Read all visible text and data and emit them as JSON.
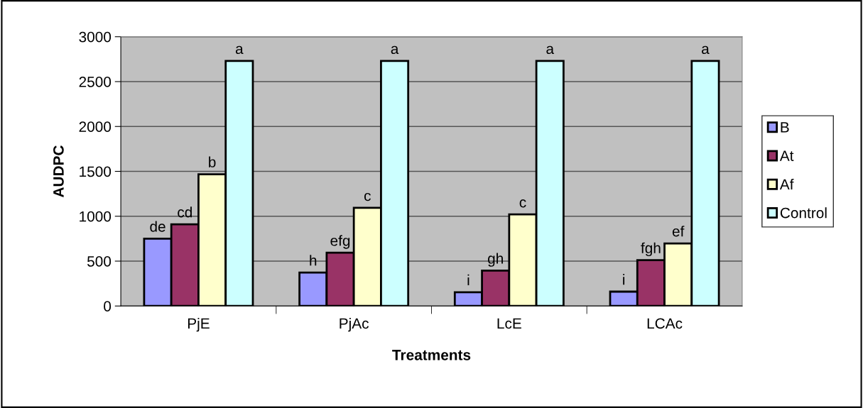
{
  "chart_data": {
    "type": "bar",
    "xlabel": "Treatments",
    "ylabel": "AUDPC",
    "categories": [
      "PjE",
      "PjAc",
      "LcE",
      "LCAc"
    ],
    "series": [
      {
        "name": "B",
        "color": "#9999ff",
        "values": [
          750,
          372,
          154,
          160
        ],
        "value_labels": [
          "de",
          "h",
          "i",
          "i"
        ]
      },
      {
        "name": "At",
        "color": "#993366",
        "values": [
          910,
          593,
          394,
          511
        ],
        "value_labels": [
          "cd",
          "efg",
          "gh",
          "fgh"
        ]
      },
      {
        "name": "Af",
        "color": "#ffffcc",
        "values": [
          1468,
          1093,
          1021,
          697
        ],
        "value_labels": [
          "b",
          "c",
          "c",
          "ef"
        ]
      },
      {
        "name": "Control",
        "color": "#ccffff",
        "values": [
          2731,
          2731,
          2731,
          2731
        ],
        "value_labels": [
          "a",
          "a",
          "a",
          "a"
        ]
      }
    ],
    "ylim": [
      0,
      3000
    ],
    "yticks": [
      0,
      500,
      1000,
      1500,
      2000,
      2500,
      3000
    ],
    "grid": "y",
    "legend": "right"
  }
}
